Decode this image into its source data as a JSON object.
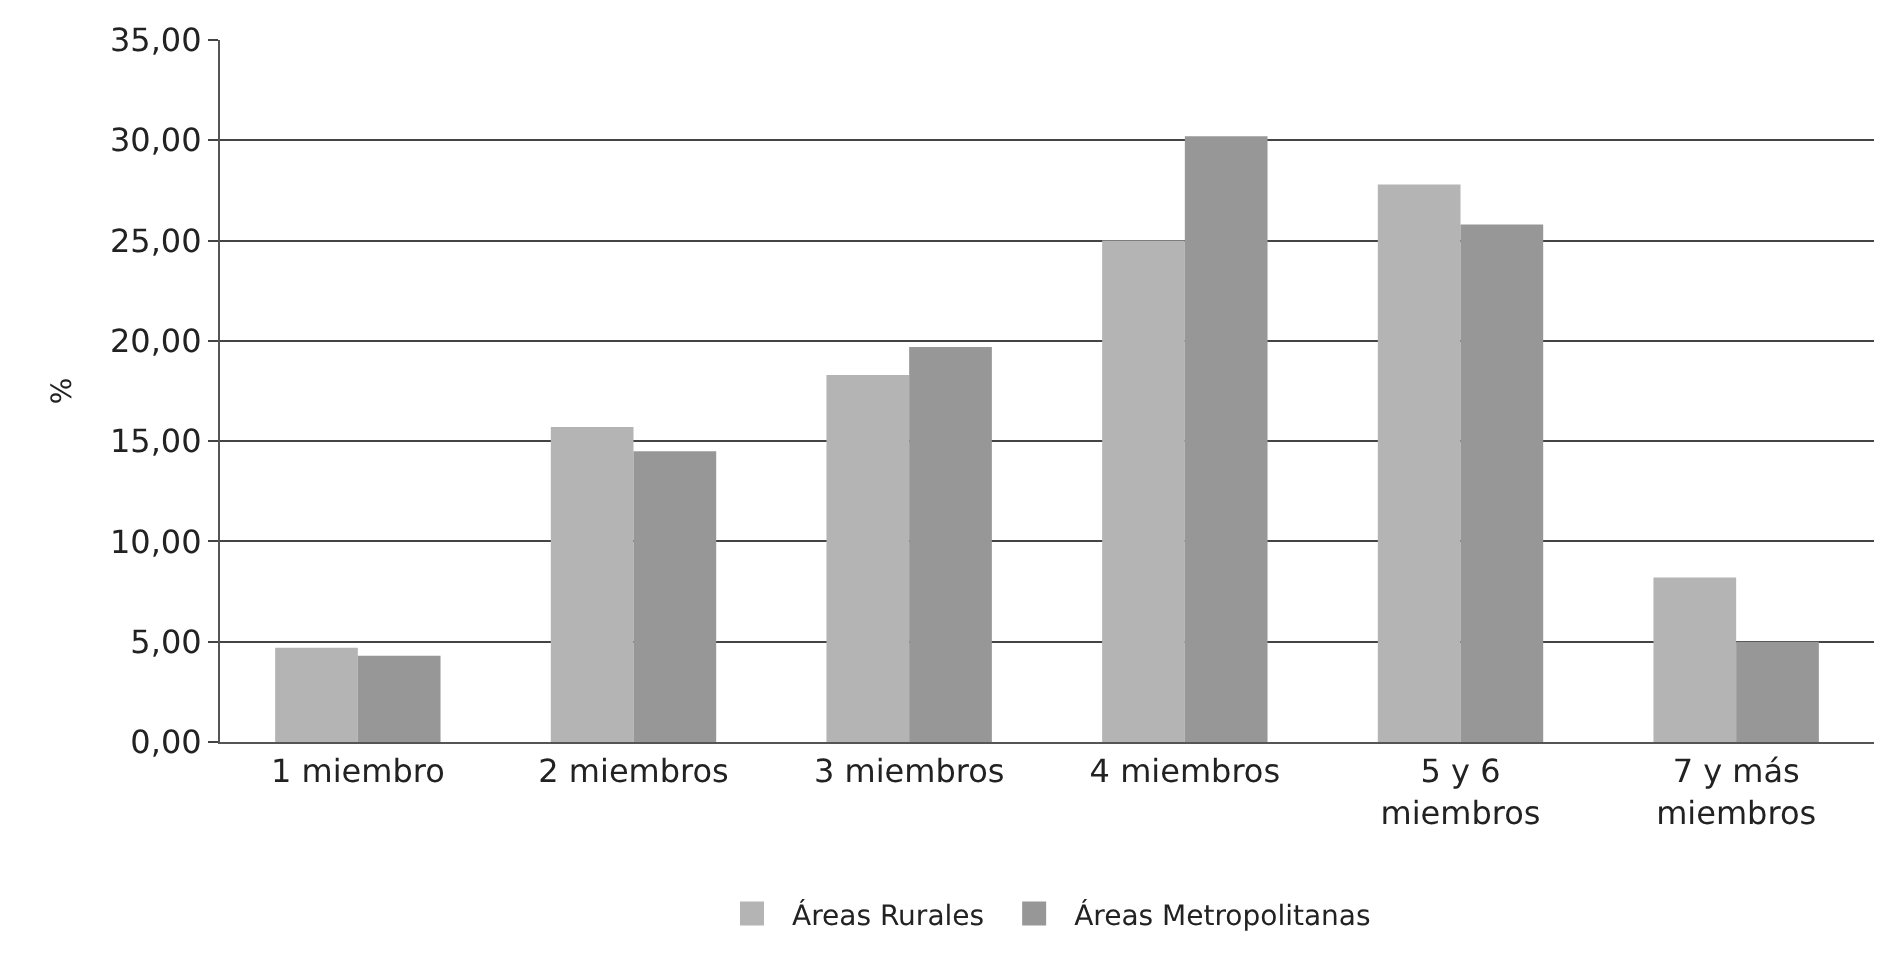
{
  "chart_data": {
    "type": "bar",
    "ylabel": "%",
    "categories": [
      "1 miembro",
      "2 miembros",
      "3 miembros",
      "4 miembros",
      "5 y 6\nmiembros",
      "7 y más\nmiembros"
    ],
    "series": [
      {
        "name": "Áreas Rurales",
        "color": "#b4b4b4",
        "values": [
          4.7,
          15.7,
          18.3,
          25.0,
          27.8,
          8.2
        ]
      },
      {
        "name": "Áreas Metropolitanas",
        "color": "#979797",
        "values": [
          4.3,
          14.5,
          19.7,
          30.2,
          25.8,
          5.0
        ]
      }
    ],
    "ylim": [
      0,
      35
    ],
    "yticks": [
      {
        "value": 0,
        "label": "0,00"
      },
      {
        "value": 5,
        "label": "5,00"
      },
      {
        "value": 10,
        "label": "10,00"
      },
      {
        "value": 15,
        "label": "15,00"
      },
      {
        "value": 20,
        "label": "20,00"
      },
      {
        "value": 25,
        "label": "25,00"
      },
      {
        "value": 30,
        "label": "30,00"
      },
      {
        "value": 35,
        "label": "35,00"
      }
    ],
    "grid": "y",
    "legend": "bottom"
  }
}
